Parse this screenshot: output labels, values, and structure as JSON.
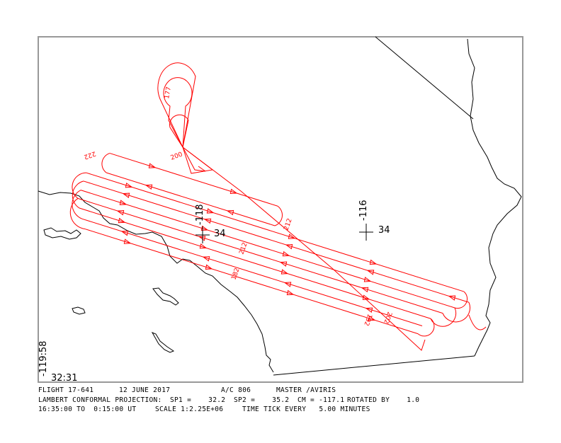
{
  "map": {
    "track_color": "#ff0000",
    "coast_color": "#000000",
    "frame_color": "#999999",
    "corner_lon": "-119:58",
    "corner_lat": "32:31",
    "graticule": [
      {
        "lon": "-118",
        "lat": "34"
      },
      {
        "lon": "-116",
        "lat": "34"
      }
    ],
    "time_labels": [
      "177",
      "200",
      "222",
      "212",
      "212",
      "182",
      "192",
      "202"
    ]
  },
  "info": {
    "line1": {
      "flight": "FLIGHT 17-641",
      "date": "12 JUNE 2017",
      "aircraft": "A/C 806",
      "instrument": "MASTER /AVIRIS"
    },
    "line2": {
      "projection": "LAMBERT CONFORMAL PROJECTION:",
      "sp1": "SP1 =    32.2",
      "sp2": "SP2 =    35.2",
      "cm": "CM = -117.1",
      "rotated": "ROTATED BY    1.0"
    },
    "line3": {
      "time_range": "16:35:00 TO  0:15:00 UT",
      "scale": "SCALE 1:2.25E+06",
      "tick": "TIME TICK EVERY   5.00 MINUTES"
    }
  }
}
